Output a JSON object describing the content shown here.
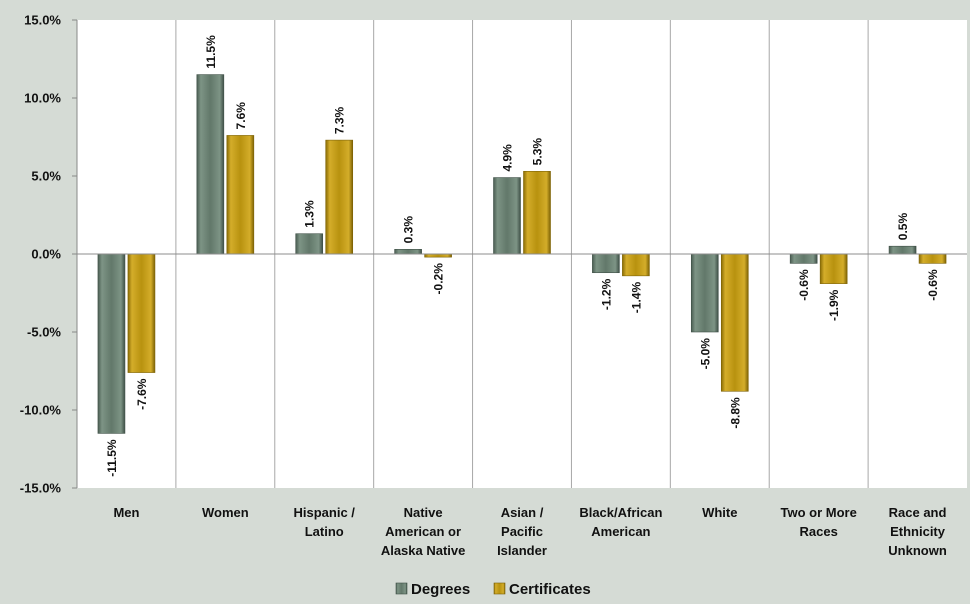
{
  "chart_data": {
    "type": "bar",
    "categories": [
      [
        "Men"
      ],
      [
        "Women"
      ],
      [
        "Hispanic /",
        "Latino"
      ],
      [
        "Native",
        "American or",
        "Alaska Native"
      ],
      [
        "Asian /",
        "Pacific",
        "Islander"
      ],
      [
        "Black/African",
        "American"
      ],
      [
        "White"
      ],
      [
        "Two or More",
        "Races"
      ],
      [
        "Race and",
        "Ethnicity",
        "Unknown"
      ]
    ],
    "series": [
      {
        "name": "Degrees",
        "values": [
          -11.5,
          11.5,
          1.3,
          0.3,
          4.9,
          -1.2,
          -5.0,
          -0.6,
          0.5
        ],
        "labels": [
          "-11.5%",
          "11.5%",
          "1.3%",
          "0.3%",
          "4.9%",
          "-1.2%",
          "-5.0%",
          "-0.6%",
          "0.5%"
        ],
        "color": "#62786a"
      },
      {
        "name": "Certificates",
        "values": [
          -7.6,
          7.6,
          7.3,
          -0.2,
          5.3,
          -1.4,
          -8.8,
          -1.9,
          -0.6
        ],
        "labels": [
          "-7.6%",
          "7.6%",
          "7.3%",
          "-0.2%",
          "5.3%",
          "-1.4%",
          "-8.8%",
          "-1.9%",
          "-0.6%"
        ],
        "color": "#b8920f"
      }
    ],
    "ylim": [
      -15,
      15
    ],
    "yticks": [
      15,
      10,
      5,
      0,
      -5,
      -10,
      -15
    ],
    "ytick_labels": [
      "15.0%",
      "10.0%",
      "5.0%",
      "0.0%",
      "-5.0%",
      "-10.0%",
      "-15.0%"
    ],
    "title": "",
    "xlabel": "",
    "ylabel": "",
    "legend_position": "bottom",
    "grid": "vertical category separators"
  }
}
